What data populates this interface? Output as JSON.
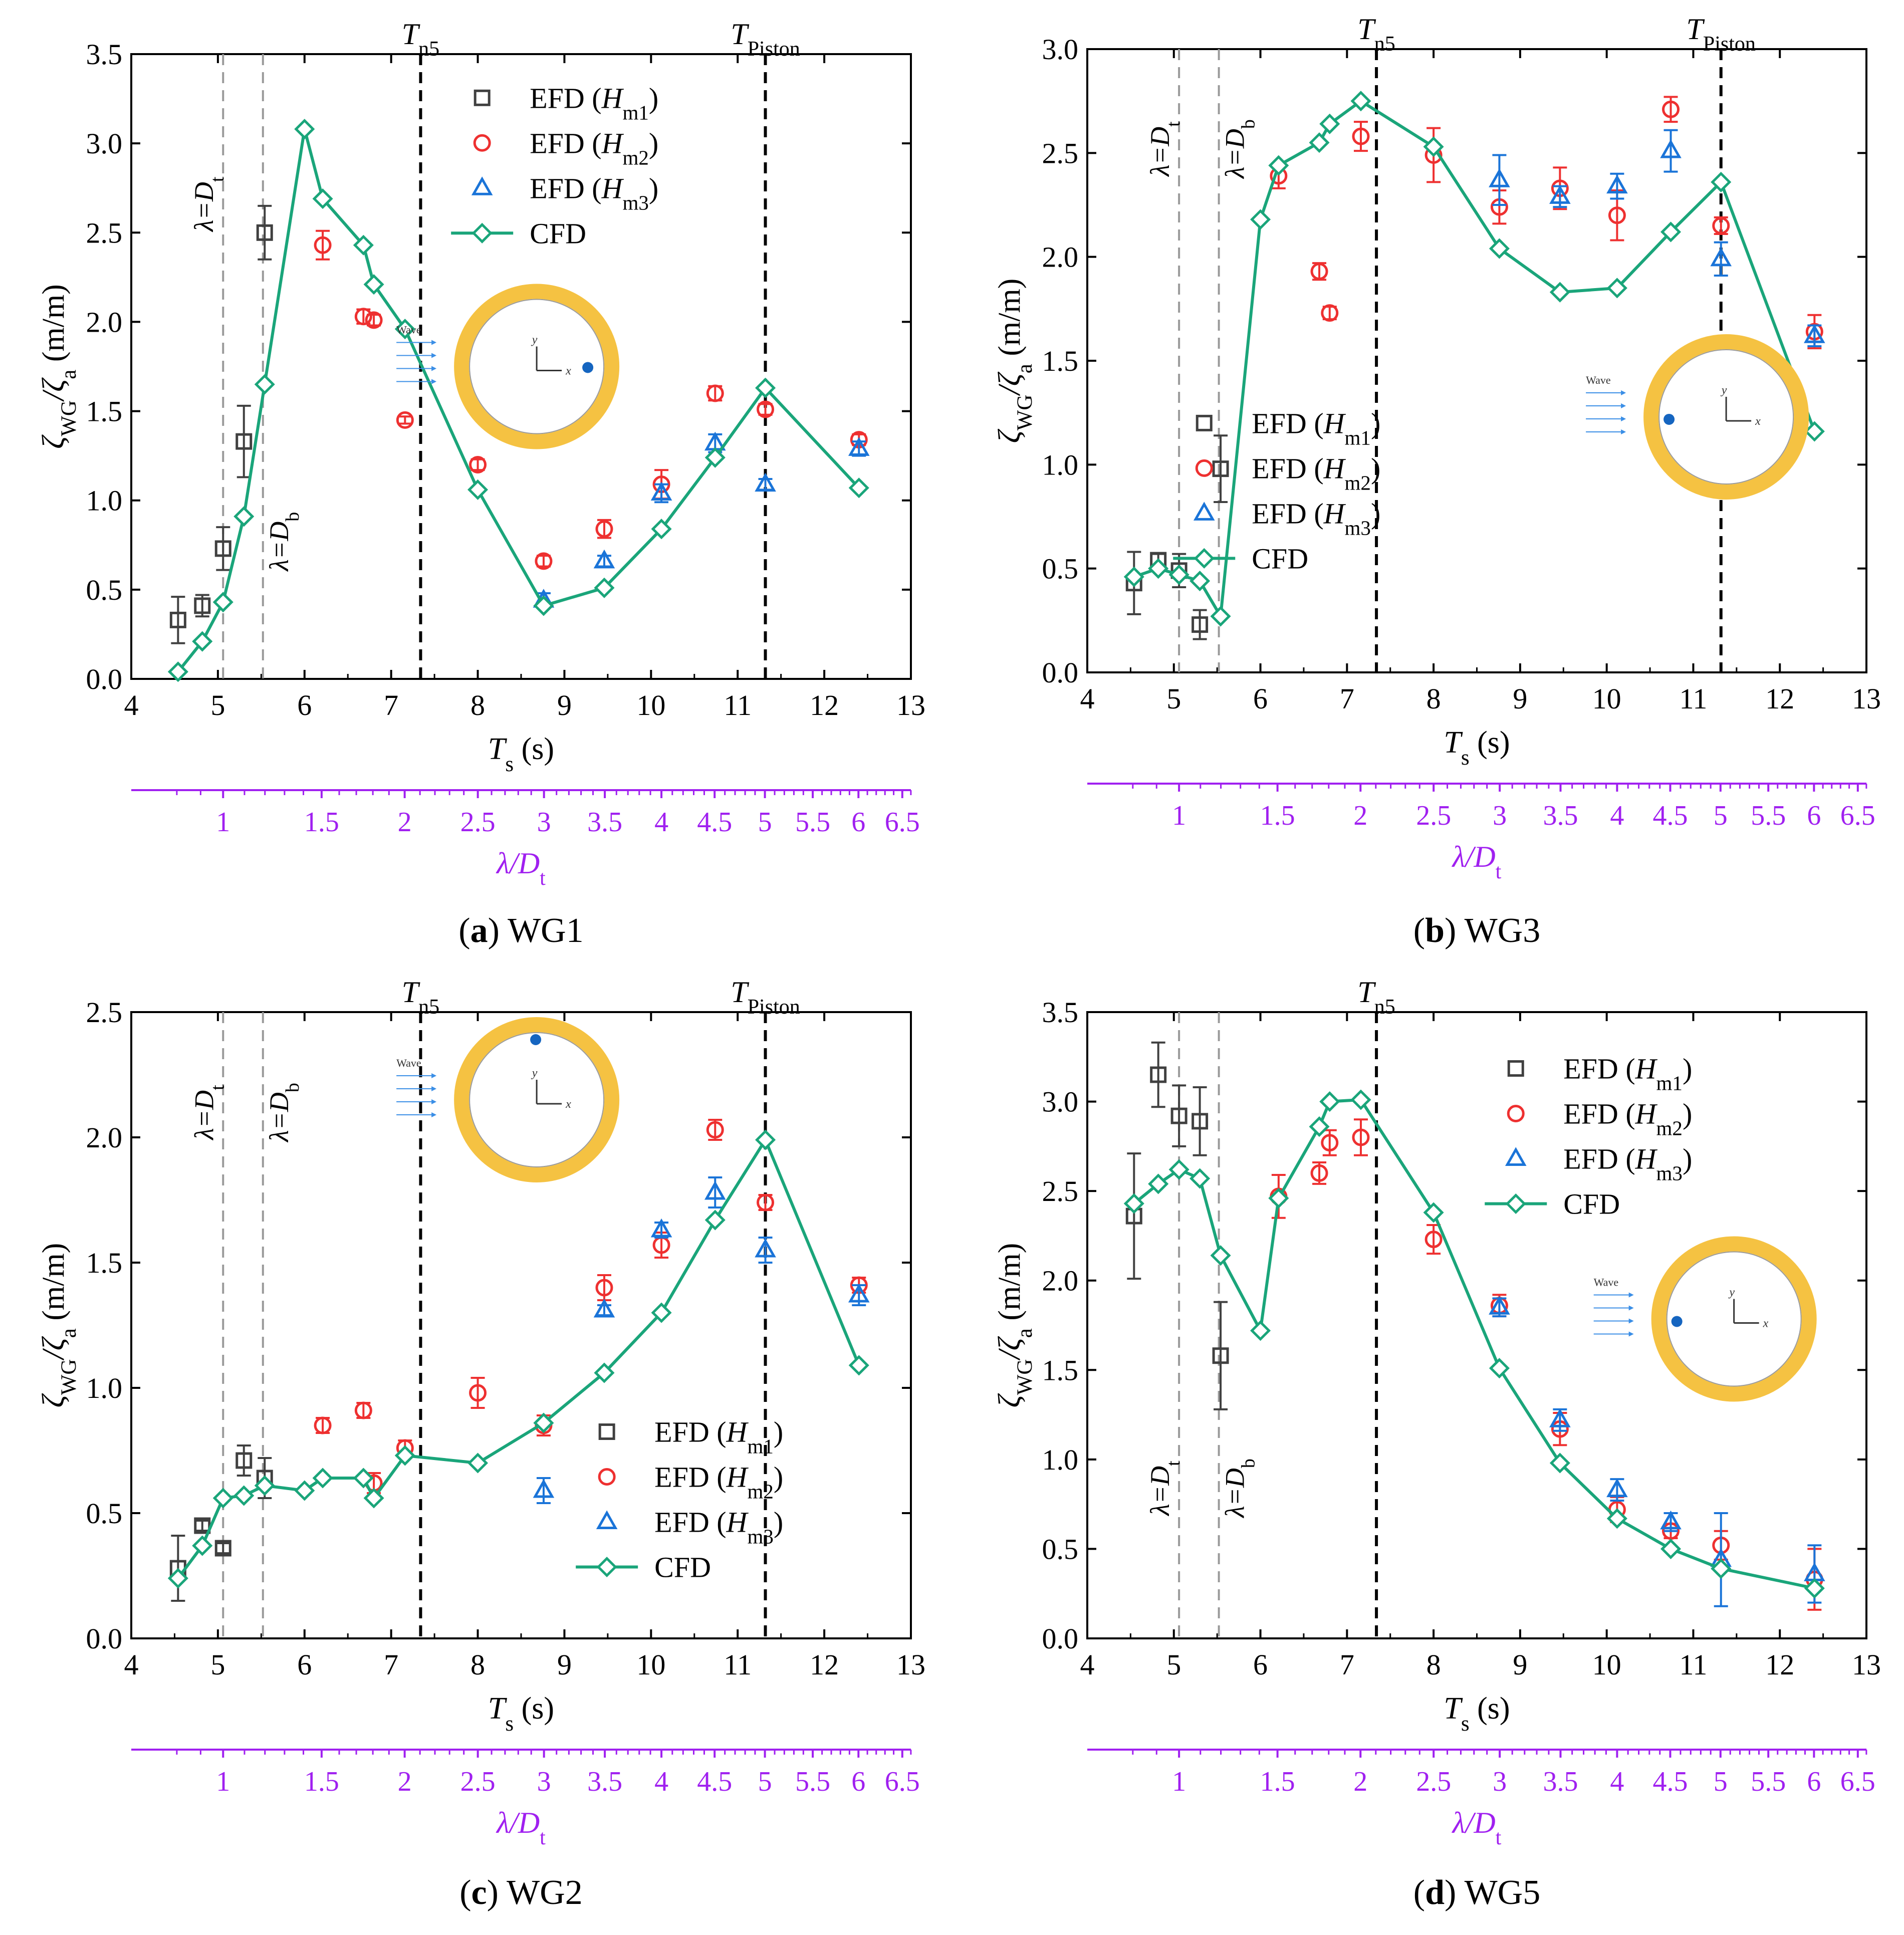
{
  "figure": {
    "x_axis_label": "T",
    "x_axis_sub": "s",
    "x_axis_unit": " (s)",
    "y_axis_zeta": "ζ",
    "y_axis_sub_wg": "WG",
    "y_axis_slash": "/ζ",
    "y_axis_sub_a": "a",
    "y_axis_unit": " (m/m)",
    "second_axis_label": "λ/D",
    "second_axis_sub": "t",
    "inset_wave_label": "Wave",
    "inset_x_label": "x",
    "inset_y_label": "y",
    "legend_prefix": "EFD (",
    "legend_h": "H",
    "legend_suffix": ")",
    "legend_cfd": "CFD",
    "lambda_dt_text": "λ=D",
    "lambda_dt_sub": "t",
    "lambda_db_text": "λ=D",
    "lambda_db_sub": "b",
    "t_n5_main": "T",
    "t_n5_sub": "n5",
    "t_piston_main": "T",
    "t_piston_sub": "Piston",
    "colors": {
      "cfd": "#1aa57a",
      "hm1": "#404040",
      "hm2": "#ee3030",
      "hm3": "#1a74d8",
      "purple": "#a020f0",
      "ring": "#f5c242",
      "dot": "#1565c0",
      "arrow": "#3a8ee6"
    }
  },
  "chart_data": [
    {
      "id": "a",
      "caption_letter": "a",
      "caption_text": "WG1",
      "type": "scatter+line",
      "xlim": [
        4,
        13
      ],
      "ylim": [
        0,
        3.5
      ],
      "xticks": [
        4,
        5,
        6,
        7,
        8,
        9,
        10,
        11,
        12,
        13
      ],
      "xtick_labels": [
        "4",
        "5",
        "6",
        "7",
        "8",
        "9",
        "10",
        "11",
        "12",
        "13"
      ],
      "yticks": [
        0,
        0.5,
        1,
        1.5,
        2,
        2.5,
        3,
        3.5
      ],
      "ytick_labels": [
        "0.0",
        "0.5",
        "1.0",
        "1.5",
        "2.0",
        "2.5",
        "3.0",
        "3.5"
      ],
      "lambda_axis": {
        "ticks": [
          1,
          1.5,
          2,
          2.5,
          3,
          3.5,
          4,
          4.5,
          5,
          5.5,
          6,
          6.5
        ],
        "labels": [
          "1",
          "1.5",
          "2",
          "2.5",
          "3",
          "3.5",
          "4",
          "4.5",
          "5",
          "5.5",
          "6",
          "6.5"
        ],
        "period_at_ratio_1": 5.06,
        "min_ratio": 0.8
      },
      "vlines": {
        "lambda_dt": 5.06,
        "lambda_db": 5.52,
        "t_n5": 7.34,
        "t_piston": 11.32
      },
      "show_t_piston": true,
      "lambda_label_placement": "split",
      "legend": "top-center",
      "inset": {
        "placement": "middle-center",
        "dot": "right"
      },
      "series": [
        {
          "name": "EFD",
          "sub": "m1",
          "key": "hm1",
          "marker": "square",
          "x": [
            4.54,
            4.82,
            5.06,
            5.3,
            5.54
          ],
          "y": [
            0.33,
            0.41,
            0.73,
            1.33,
            2.5
          ],
          "err": [
            0.13,
            0.06,
            0.12,
            0.2,
            0.15
          ]
        },
        {
          "name": "EFD",
          "sub": "m2",
          "key": "hm2",
          "marker": "circle",
          "x": [
            6.21,
            6.68,
            6.8,
            7.16,
            8.0,
            8.76,
            9.46,
            10.12,
            10.74,
            11.32,
            12.4
          ],
          "y": [
            2.43,
            2.03,
            2.01,
            1.45,
            1.2,
            0.66,
            0.84,
            1.09,
            1.6,
            1.51,
            1.34
          ],
          "err": [
            0.08,
            0.04,
            0.03,
            0.02,
            0.03,
            0.03,
            0.05,
            0.08,
            0.04,
            0.03,
            0.03
          ]
        },
        {
          "name": "EFD",
          "sub": "m3",
          "key": "hm3",
          "marker": "triangle",
          "x": [
            8.76,
            9.46,
            10.12,
            10.74,
            11.32,
            12.4
          ],
          "y": [
            0.44,
            0.66,
            1.04,
            1.32,
            1.09,
            1.29
          ],
          "err": [
            0.04,
            0.03,
            0.05,
            0.05,
            0.03,
            0.04
          ]
        },
        {
          "name": "CFD",
          "key": "cfd",
          "marker": "diamond",
          "x": [
            4.54,
            4.82,
            5.06,
            5.3,
            5.54,
            6.0,
            6.21,
            6.68,
            6.8,
            7.16,
            8.0,
            8.76,
            9.46,
            10.12,
            10.74,
            11.32,
            12.4
          ],
          "y": [
            0.04,
            0.21,
            0.43,
            0.91,
            1.65,
            3.08,
            2.69,
            2.43,
            2.21,
            1.96,
            1.06,
            0.41,
            0.51,
            0.84,
            1.24,
            1.63,
            1.07
          ]
        }
      ]
    },
    {
      "id": "b",
      "caption_letter": "b",
      "caption_text": "WG3",
      "type": "scatter+line",
      "xlim": [
        4,
        13
      ],
      "ylim": [
        0,
        3.0
      ],
      "xticks": [
        4,
        5,
        6,
        7,
        8,
        9,
        10,
        11,
        12,
        13
      ],
      "xtick_labels": [
        "4",
        "5",
        "6",
        "7",
        "8",
        "9",
        "10",
        "11",
        "12",
        "13"
      ],
      "yticks": [
        0,
        0.5,
        1,
        1.5,
        2,
        2.5,
        3
      ],
      "ytick_labels": [
        "0.0",
        "0.5",
        "1.0",
        "1.5",
        "2.0",
        "2.5",
        "3.0"
      ],
      "lambda_axis": {
        "ticks": [
          1,
          1.5,
          2,
          2.5,
          3,
          3.5,
          4,
          4.5,
          5,
          5.5,
          6,
          6.5
        ],
        "labels": [
          "1",
          "1.5",
          "2",
          "2.5",
          "3",
          "3.5",
          "4",
          "4.5",
          "5",
          "5.5",
          "6",
          "6.5"
        ],
        "period_at_ratio_1": 5.06,
        "min_ratio": 0.8
      },
      "vlines": {
        "lambda_dt": 5.06,
        "lambda_db": 5.52,
        "t_n5": 7.34,
        "t_piston": 11.32
      },
      "show_t_piston": true,
      "lambda_label_placement": "top",
      "legend": "middle-left",
      "inset": {
        "placement": "middle-right",
        "dot": "left"
      },
      "series": [
        {
          "name": "EFD",
          "sub": "m1",
          "key": "hm1",
          "marker": "square",
          "x": [
            4.54,
            4.82,
            5.06,
            5.3,
            5.54
          ],
          "y": [
            0.43,
            0.54,
            0.49,
            0.23,
            0.98
          ],
          "err": [
            0.15,
            0.03,
            0.08,
            0.07,
            0.16
          ]
        },
        {
          "name": "EFD",
          "sub": "m2",
          "key": "hm2",
          "marker": "circle",
          "x": [
            6.21,
            6.68,
            6.8,
            7.16,
            8.0,
            8.76,
            9.46,
            10.12,
            10.74,
            11.32,
            12.4
          ],
          "y": [
            2.39,
            1.93,
            1.73,
            2.58,
            2.49,
            2.24,
            2.33,
            2.2,
            2.71,
            2.15,
            1.64
          ],
          "err": [
            0.06,
            0.04,
            0.03,
            0.07,
            0.13,
            0.08,
            0.1,
            0.12,
            0.06,
            0.04,
            0.08
          ]
        },
        {
          "name": "EFD",
          "sub": "m3",
          "key": "hm3",
          "marker": "triangle",
          "x": [
            8.76,
            9.46,
            10.12,
            10.74,
            11.32,
            12.4
          ],
          "y": [
            2.37,
            2.29,
            2.34,
            2.51,
            1.99,
            1.62
          ],
          "err": [
            0.12,
            0.05,
            0.06,
            0.1,
            0.08,
            0.05
          ]
        },
        {
          "name": "CFD",
          "key": "cfd",
          "marker": "diamond",
          "x": [
            4.54,
            4.82,
            5.06,
            5.3,
            5.54,
            6.0,
            6.21,
            6.68,
            6.8,
            7.16,
            8.0,
            8.76,
            9.46,
            10.12,
            10.74,
            11.32,
            12.4
          ],
          "y": [
            0.46,
            0.5,
            0.47,
            0.44,
            0.27,
            2.18,
            2.44,
            2.55,
            2.64,
            2.75,
            2.53,
            2.04,
            1.83,
            1.85,
            2.12,
            2.36,
            1.16
          ]
        }
      ]
    },
    {
      "id": "c",
      "caption_letter": "c",
      "caption_text": "WG2",
      "type": "scatter+line",
      "xlim": [
        4,
        13
      ],
      "ylim": [
        0,
        2.5
      ],
      "xticks": [
        4,
        5,
        6,
        7,
        8,
        9,
        10,
        11,
        12,
        13
      ],
      "xtick_labels": [
        "4",
        "5",
        "6",
        "7",
        "8",
        "9",
        "10",
        "11",
        "12",
        "13"
      ],
      "yticks": [
        0,
        0.5,
        1,
        1.5,
        2,
        2.5
      ],
      "ytick_labels": [
        "0.0",
        "0.5",
        "1.0",
        "1.5",
        "2.0",
        "2.5"
      ],
      "lambda_axis": {
        "ticks": [
          1,
          1.5,
          2,
          2.5,
          3,
          3.5,
          4,
          4.5,
          5,
          5.5,
          6,
          6.5
        ],
        "labels": [
          "1",
          "1.5",
          "2",
          "2.5",
          "3",
          "3.5",
          "4",
          "4.5",
          "5",
          "5.5",
          "6",
          "6.5"
        ],
        "period_at_ratio_1": 5.06,
        "min_ratio": 0.8
      },
      "vlines": {
        "lambda_dt": 5.06,
        "lambda_db": 5.52,
        "t_n5": 7.34,
        "t_piston": 11.32
      },
      "show_t_piston": true,
      "lambda_label_placement": "top",
      "legend": "bottom-right",
      "inset": {
        "placement": "top-center",
        "dot": "top"
      },
      "series": [
        {
          "name": "EFD",
          "sub": "m1",
          "key": "hm1",
          "marker": "square",
          "x": [
            4.54,
            4.82,
            5.06,
            5.3,
            5.54
          ],
          "y": [
            0.28,
            0.45,
            0.36,
            0.71,
            0.64
          ],
          "err": [
            0.13,
            0.02,
            0.02,
            0.06,
            0.08
          ]
        },
        {
          "name": "EFD",
          "sub": "m2",
          "key": "hm2",
          "marker": "circle",
          "x": [
            6.21,
            6.68,
            6.8,
            7.16,
            8.0,
            8.76,
            9.46,
            10.12,
            10.74,
            11.32,
            12.4
          ],
          "y": [
            0.85,
            0.91,
            0.62,
            0.76,
            0.98,
            0.85,
            1.4,
            1.57,
            2.03,
            1.74,
            1.41
          ],
          "err": [
            0.03,
            0.03,
            0.04,
            0.03,
            0.06,
            0.04,
            0.05,
            0.05,
            0.04,
            0.03,
            0.03
          ]
        },
        {
          "name": "EFD",
          "sub": "m3",
          "key": "hm3",
          "marker": "triangle",
          "x": [
            8.76,
            9.46,
            10.12,
            10.74,
            11.32,
            12.4
          ],
          "y": [
            0.59,
            1.31,
            1.63,
            1.78,
            1.55,
            1.37
          ],
          "err": [
            0.05,
            0.02,
            0.03,
            0.06,
            0.05,
            0.04
          ]
        },
        {
          "name": "CFD",
          "key": "cfd",
          "marker": "diamond",
          "x": [
            4.54,
            4.82,
            5.06,
            5.3,
            5.54,
            6.0,
            6.21,
            6.68,
            6.8,
            7.16,
            8.0,
            8.76,
            9.46,
            10.12,
            10.74,
            11.32,
            12.4
          ],
          "y": [
            0.24,
            0.37,
            0.56,
            0.57,
            0.61,
            0.59,
            0.64,
            0.64,
            0.56,
            0.73,
            0.7,
            0.86,
            1.06,
            1.3,
            1.67,
            1.99,
            1.09
          ]
        }
      ]
    },
    {
      "id": "d",
      "caption_letter": "d",
      "caption_text": "WG5",
      "type": "scatter+line",
      "xlim": [
        4,
        13
      ],
      "ylim": [
        0,
        3.5
      ],
      "xticks": [
        4,
        5,
        6,
        7,
        8,
        9,
        10,
        11,
        12,
        13
      ],
      "xtick_labels": [
        "4",
        "5",
        "6",
        "7",
        "8",
        "9",
        "10",
        "11",
        "12",
        "13"
      ],
      "yticks": [
        0,
        0.5,
        1,
        1.5,
        2,
        2.5,
        3,
        3.5
      ],
      "ytick_labels": [
        "0.0",
        "0.5",
        "1.0",
        "1.5",
        "2.0",
        "2.5",
        "3.0",
        "3.5"
      ],
      "lambda_axis": {
        "ticks": [
          1,
          1.5,
          2,
          2.5,
          3,
          3.5,
          4,
          4.5,
          5,
          5.5,
          6,
          6.5
        ],
        "labels": [
          "1",
          "1.5",
          "2",
          "2.5",
          "3",
          "3.5",
          "4",
          "4.5",
          "5",
          "5.5",
          "6",
          "6.5"
        ],
        "period_at_ratio_1": 5.06,
        "min_ratio": 0.8
      },
      "vlines": {
        "lambda_dt": 5.06,
        "lambda_db": 5.52,
        "t_n5": 7.34,
        "t_piston": 11.32
      },
      "show_t_piston": false,
      "lambda_label_placement": "bottom",
      "legend": "top-right",
      "inset": {
        "placement": "middle-right",
        "dot": "left"
      },
      "series": [
        {
          "name": "EFD",
          "sub": "m1",
          "key": "hm1",
          "marker": "square",
          "x": [
            4.54,
            4.82,
            5.06,
            5.3,
            5.54
          ],
          "y": [
            2.36,
            3.15,
            2.92,
            2.89,
            1.58
          ],
          "err": [
            0.35,
            0.18,
            0.17,
            0.19,
            0.3
          ]
        },
        {
          "name": "EFD",
          "sub": "m2",
          "key": "hm2",
          "marker": "circle",
          "x": [
            6.21,
            6.68,
            6.8,
            7.16,
            8.0,
            8.76,
            9.46,
            10.12,
            10.74,
            11.32,
            12.4
          ],
          "y": [
            2.47,
            2.6,
            2.77,
            2.8,
            2.23,
            1.86,
            1.17,
            0.72,
            0.6,
            0.52,
            0.33
          ],
          "err": [
            0.12,
            0.06,
            0.07,
            0.1,
            0.08,
            0.06,
            0.09,
            0.07,
            0.04,
            0.08,
            0.17
          ]
        },
        {
          "name": "EFD",
          "sub": "m3",
          "key": "hm3",
          "marker": "triangle",
          "x": [
            8.76,
            9.46,
            10.12,
            10.74,
            11.32,
            12.4
          ],
          "y": [
            1.85,
            1.22,
            0.83,
            0.65,
            0.44,
            0.36
          ],
          "err": [
            0.05,
            0.06,
            0.06,
            0.05,
            0.26,
            0.16
          ]
        },
        {
          "name": "CFD",
          "key": "cfd",
          "marker": "diamond",
          "x": [
            4.54,
            4.82,
            5.06,
            5.3,
            5.54,
            6.0,
            6.21,
            6.68,
            6.8,
            7.16,
            8.0,
            8.76,
            9.46,
            10.12,
            10.74,
            11.32,
            12.4
          ],
          "y": [
            2.43,
            2.54,
            2.62,
            2.57,
            2.14,
            1.72,
            2.46,
            2.86,
            3.0,
            3.01,
            2.38,
            1.51,
            0.98,
            0.67,
            0.5,
            0.39,
            0.28
          ]
        }
      ]
    }
  ]
}
